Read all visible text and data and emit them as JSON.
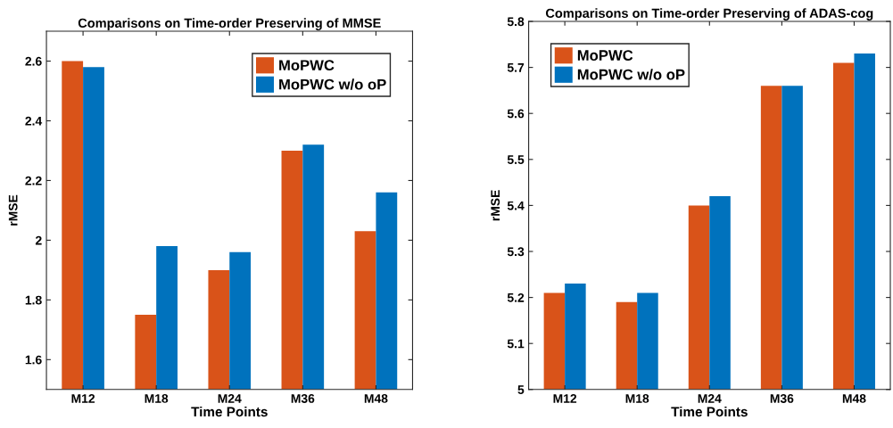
{
  "chart_data": [
    {
      "type": "bar",
      "title": "Comparisons on Time-order Preserving of MMSE",
      "xlabel": "Time Points",
      "ylabel": "rMSE",
      "categories": [
        "M12",
        "M18",
        "M24",
        "M36",
        "M48"
      ],
      "series": [
        {
          "name": "MoPWC",
          "color": "#d95319",
          "values": [
            2.6,
            1.75,
            1.9,
            2.3,
            2.03
          ]
        },
        {
          "name": "MoPWC w/o oP",
          "color": "#0072bd",
          "values": [
            2.58,
            1.98,
            1.96,
            2.32,
            2.16
          ]
        }
      ],
      "ylim": [
        1.5,
        2.7
      ],
      "yticks": [
        1.6,
        1.8,
        2,
        2.2,
        2.4,
        2.6
      ],
      "legend": "top right",
      "grid": false
    },
    {
      "type": "bar",
      "title": "Comparisons on Time-order Preserving of ADAS-cog",
      "xlabel": "Time Points",
      "ylabel": "rMSE",
      "categories": [
        "M12",
        "M18",
        "M24",
        "M36",
        "M48"
      ],
      "series": [
        {
          "name": "MoPWC",
          "color": "#d95319",
          "values": [
            5.21,
            5.19,
            5.4,
            5.66,
            5.71
          ]
        },
        {
          "name": "MoPWC w/o oP",
          "color": "#0072bd",
          "values": [
            5.23,
            5.21,
            5.42,
            5.66,
            5.73
          ]
        }
      ],
      "ylim": [
        5,
        5.8
      ],
      "yticks": [
        5,
        5.1,
        5.2,
        5.3,
        5.4,
        5.5,
        5.6,
        5.7,
        5.8
      ],
      "legend": "top left",
      "grid": false
    }
  ]
}
